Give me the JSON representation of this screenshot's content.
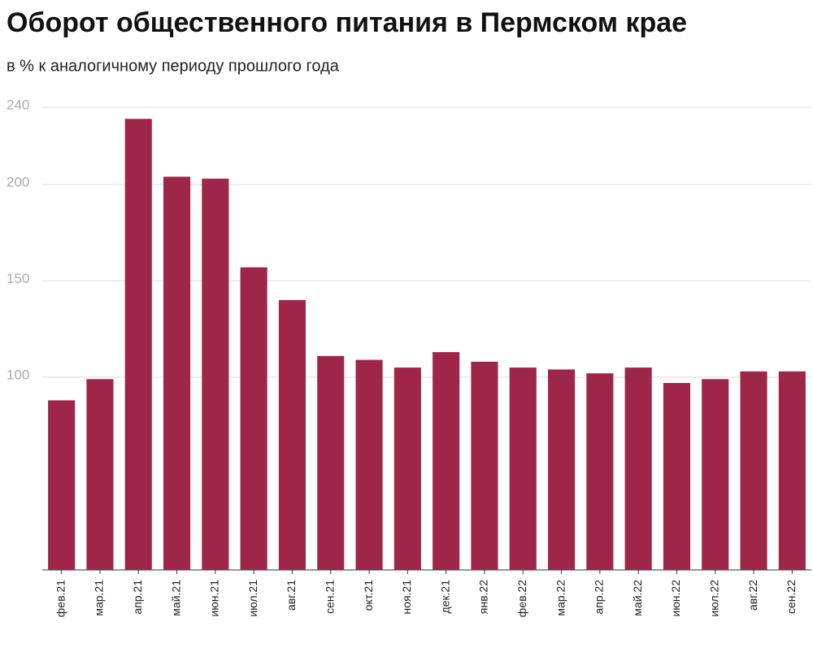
{
  "chart_data": {
    "type": "bar",
    "title": "Оборот общественного питания в Пермском крае",
    "subtitle": "в % к аналогичному периоду прошлого года",
    "categories": [
      "фев.21",
      "мар.21",
      "апр.21",
      "май.21",
      "июн.21",
      "июл.21",
      "авг.21",
      "сен.21",
      "окт.21",
      "ноя.21",
      "дек.21",
      "янв.22",
      "фев.22",
      "мар.22",
      "апр.22",
      "май.22",
      "июн.22",
      "июл.22",
      "авг.22",
      "сен.22"
    ],
    "values": [
      88,
      99,
      234,
      204,
      203,
      157,
      140,
      111,
      109,
      105,
      113,
      108,
      105,
      104,
      102,
      105,
      97,
      99,
      103,
      103
    ],
    "color": "#9e264b",
    "ylim": [
      0,
      240
    ],
    "yticks": [
      100,
      150,
      200,
      240
    ],
    "grid": true
  }
}
